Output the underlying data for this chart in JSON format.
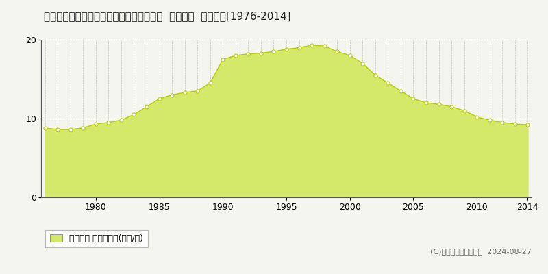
{
  "title": "兵庫県姫路市四郷町中鈴字下柏８１番１外  地価公示  地価推移[1976-2014]",
  "years": [
    1976,
    1977,
    1978,
    1979,
    1980,
    1981,
    1982,
    1983,
    1984,
    1985,
    1986,
    1987,
    1988,
    1989,
    1990,
    1991,
    1992,
    1993,
    1994,
    1995,
    1996,
    1997,
    1998,
    1999,
    2000,
    2001,
    2002,
    2003,
    2004,
    2005,
    2006,
    2007,
    2008,
    2009,
    2010,
    2011,
    2012,
    2013,
    2014
  ],
  "values": [
    8.8,
    8.6,
    8.6,
    8.8,
    9.3,
    9.5,
    9.8,
    10.5,
    11.5,
    12.5,
    13.0,
    13.3,
    13.5,
    14.5,
    17.5,
    18.0,
    18.2,
    18.3,
    18.5,
    18.8,
    19.0,
    19.3,
    19.2,
    18.5,
    18.0,
    17.0,
    15.5,
    14.5,
    13.5,
    12.5,
    12.0,
    11.8,
    11.5,
    11.0,
    10.2,
    9.8,
    9.5,
    9.3,
    9.2
  ],
  "ylim": [
    0,
    20
  ],
  "yticks": [
    0,
    10,
    20
  ],
  "xticks": [
    1980,
    1985,
    1990,
    1995,
    2000,
    2005,
    2010,
    2014
  ],
  "line_color": "#b8cc00",
  "fill_color": "#d4e86a",
  "fill_alpha": 1.0,
  "marker_color": "white",
  "marker_edge_color": "#b8cc00",
  "bg_color": "#f5f5f0",
  "plot_bg_color": "#f5f5f0",
  "grid_color": "#999999",
  "legend_label": "地価公示 平均坪単価(万円/坪)",
  "copyright_text": "(C)土地価格ドットコム  2024-08-27",
  "title_fontsize": 11,
  "axis_fontsize": 9,
  "legend_fontsize": 9,
  "copyright_fontsize": 8
}
